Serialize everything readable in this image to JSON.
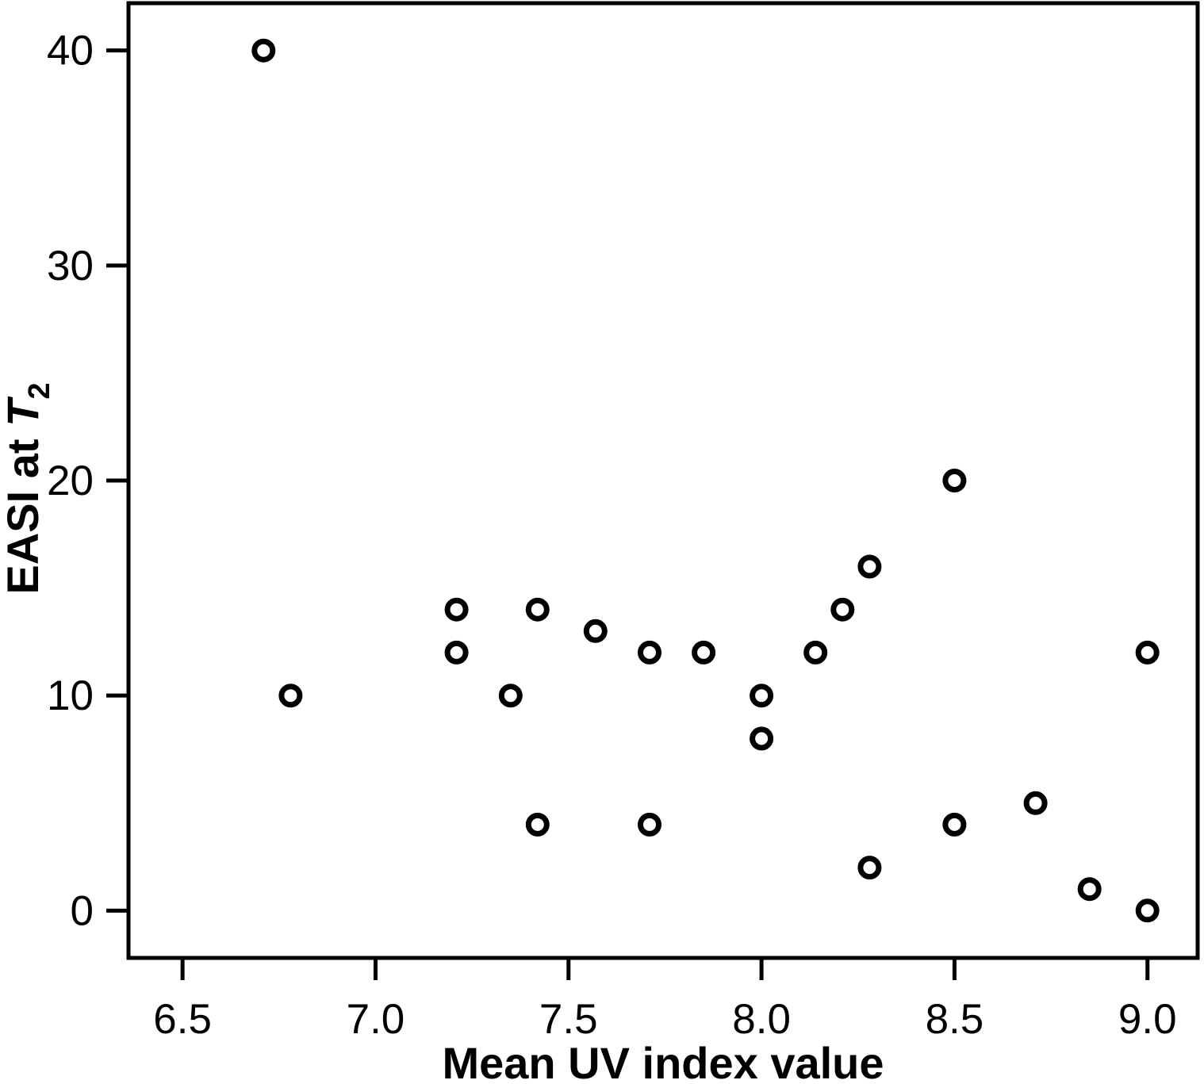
{
  "chart_data": {
    "type": "scatter",
    "title": "",
    "xlabel": "Mean UV index value",
    "ylabel": {
      "prefix": "EASI at ",
      "symbol": "T",
      "subscript": "2"
    },
    "x_ticks": [
      6.5,
      7.0,
      7.5,
      8.0,
      8.5,
      9.0
    ],
    "y_ticks": [
      0,
      10,
      20,
      30,
      40
    ],
    "xlim": [
      6.36,
      9.13
    ],
    "ylim": [
      -2.2,
      42.2
    ],
    "grid": false,
    "legend": "none",
    "marker": {
      "shape": "open-circle",
      "stroke_color": "#000000",
      "fill_color": "#ffffff"
    },
    "points": [
      [
        6.71,
        40
      ],
      [
        6.78,
        10
      ],
      [
        7.21,
        14
      ],
      [
        7.21,
        12
      ],
      [
        7.35,
        10
      ],
      [
        7.42,
        14
      ],
      [
        7.42,
        4
      ],
      [
        7.57,
        13
      ],
      [
        7.71,
        12
      ],
      [
        7.71,
        4
      ],
      [
        7.85,
        12
      ],
      [
        8.0,
        10
      ],
      [
        8.0,
        8
      ],
      [
        8.14,
        12
      ],
      [
        8.21,
        14
      ],
      [
        8.28,
        16
      ],
      [
        8.28,
        2
      ],
      [
        8.5,
        20
      ],
      [
        8.5,
        4
      ],
      [
        8.71,
        5
      ],
      [
        8.85,
        1
      ],
      [
        9.0,
        0
      ],
      [
        9.0,
        12
      ]
    ]
  },
  "colors": {
    "axis": "#000000",
    "background": "#ffffff"
  }
}
